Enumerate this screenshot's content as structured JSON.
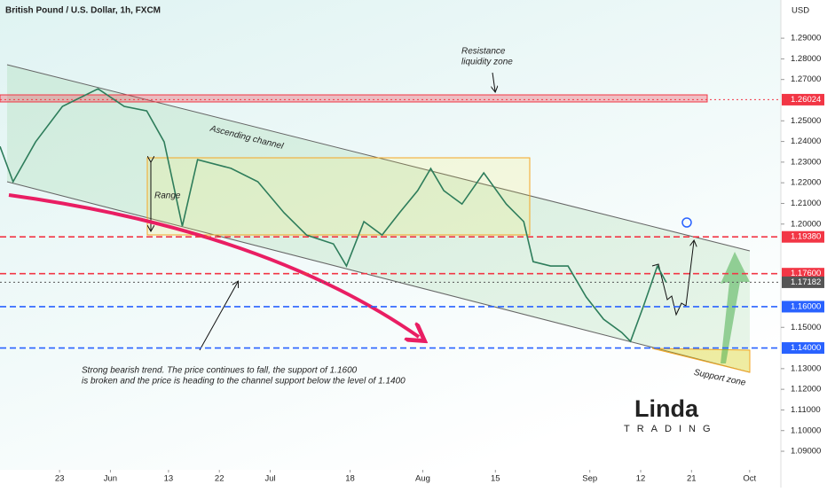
{
  "header": {
    "title": "British Pound / U.S. Dollar, 1h, FXCM",
    "currency": "USD"
  },
  "chart_data": {
    "type": "line",
    "color": "#2e7d5b",
    "x": [
      -8.2,
      -6.4,
      -3.3,
      0.4,
      5.3,
      8.9,
      12,
      14.4,
      16.9,
      19,
      23.6,
      27.3,
      30.9,
      34,
      37.7,
      39.5,
      41.9,
      44.4,
      46.8,
      49.3,
      51.1,
      52.9,
      55.4,
      58.4,
      61.5,
      63.9,
      65.2,
      67.6,
      70,
      72.5,
      74.9,
      77.4,
      78.6,
      80.4,
      82.3,
      83.5
    ],
    "values": [
      1.2376,
      1.2205,
      1.2398,
      1.257,
      1.2655,
      1.257,
      1.2548,
      1.2398,
      1.199,
      1.2312,
      1.227,
      1.2205,
      1.2055,
      1.1947,
      1.1904,
      1.1797,
      1.2012,
      1.1947,
      1.2055,
      1.2162,
      1.2269,
      1.2162,
      1.2097,
      1.2248,
      1.2097,
      1.2012,
      1.1818,
      1.1797,
      1.1797,
      1.1647,
      1.1539,
      1.1475,
      1.1432,
      1.1604,
      1.1797,
      1.1719
    ],
    "xlim": [
      -8.2,
      99.3
    ],
    "xticks": [
      {
        "value": 0,
        "label": "23"
      },
      {
        "value": 7,
        "label": "Jun"
      },
      {
        "value": 15,
        "label": "13"
      },
      {
        "value": 22,
        "label": "22"
      },
      {
        "value": 29,
        "label": "Jul"
      },
      {
        "value": 40,
        "label": "18"
      },
      {
        "value": 50,
        "label": "Aug"
      },
      {
        "value": 60,
        "label": "15"
      },
      {
        "value": 73,
        "label": "Sep"
      },
      {
        "value": 80,
        "label": "12"
      },
      {
        "value": 87,
        "label": "21"
      },
      {
        "value": 95,
        "label": "Oct"
      }
    ],
    "ylim": [
      1.081,
      1.3085
    ],
    "yticks": [
      {
        "value": 1.09,
        "label": "1.09000"
      },
      {
        "value": 1.1,
        "label": "1.10000"
      },
      {
        "value": 1.11,
        "label": "1.11000"
      },
      {
        "value": 1.12,
        "label": "1.12000"
      },
      {
        "value": 1.13,
        "label": "1.13000"
      },
      {
        "value": 1.15,
        "label": "1.15000"
      },
      {
        "value": 1.2,
        "label": "1.20000"
      },
      {
        "value": 1.21,
        "label": "1.21000"
      },
      {
        "value": 1.22,
        "label": "1.22000"
      },
      {
        "value": 1.23,
        "label": "1.23000"
      },
      {
        "value": 1.24,
        "label": "1.24000"
      },
      {
        "value": 1.25,
        "label": "1.25000"
      },
      {
        "value": 1.27,
        "label": "1.27000"
      },
      {
        "value": 1.28,
        "label": "1.28000"
      },
      {
        "value": 1.29,
        "label": "1.29000"
      }
    ],
    "levels": [
      {
        "value": 1.26024,
        "label": "1.26024",
        "color": "#f23645",
        "style": "dotted"
      },
      {
        "value": 1.1938,
        "label": "1.19380",
        "color": "#f23645",
        "style": "dashed"
      },
      {
        "value": 1.176,
        "label": "1.17600",
        "color": "#f23645",
        "style": "dashed"
      },
      {
        "value": 1.17182,
        "label": "1.17182",
        "color": "#555555",
        "style": "dotted"
      },
      {
        "value": 1.16,
        "label": "1.16000",
        "color": "#2962ff",
        "style": "dashed"
      },
      {
        "value": 1.14,
        "label": "1.14000",
        "color": "#2962ff",
        "style": "dashed"
      }
    ],
    "annotations": {
      "resistance": [
        "Resistance",
        "liquidity zone"
      ],
      "channel": "Ascending channel",
      "range": "Range",
      "trend": [
        "Strong bearish trend. The price continues to fall, the support of 1.1600",
        "is broken and the price is heading to the channel support below the level of 1.1400"
      ],
      "support": "Support zone"
    }
  },
  "logo": {
    "name": "Linda",
    "subtitle": "TRADING"
  }
}
